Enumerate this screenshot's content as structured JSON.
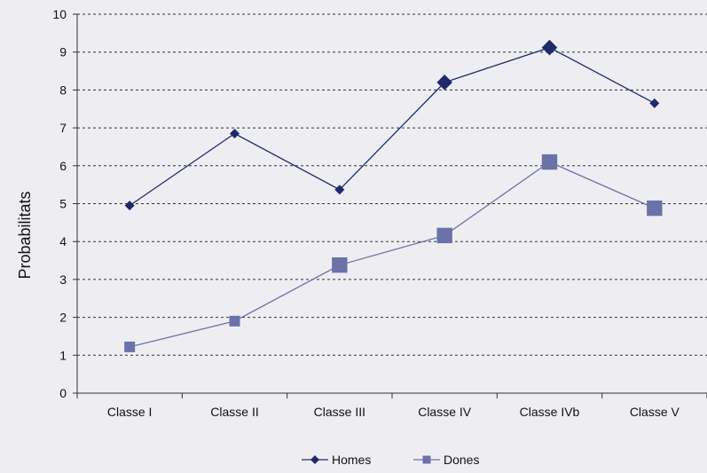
{
  "chart_data": {
    "type": "line",
    "title": "",
    "xlabel": "",
    "ylabel": "Probabilitats",
    "ylim": [
      0,
      10
    ],
    "yticks": [
      0,
      1,
      2,
      3,
      4,
      5,
      6,
      7,
      8,
      9,
      10
    ],
    "categories": [
      "Classe I",
      "Classe II",
      "Classe III",
      "Classe IV",
      "Classe IVb",
      "Classe V"
    ],
    "grid": "horizontal-dotted",
    "legend_position": "bottom",
    "series": [
      {
        "name": "Homes",
        "marker": "diamond",
        "color": "#1f2a6e",
        "values": [
          4.95,
          6.85,
          5.37,
          8.2,
          9.12,
          7.65
        ],
        "marker_scale": [
          1,
          1,
          1,
          1.6,
          1.6,
          1
        ]
      },
      {
        "name": "Dones",
        "marker": "square",
        "color": "#6b72a8",
        "values": [
          1.22,
          1.9,
          3.38,
          4.16,
          6.1,
          4.88
        ],
        "marker_scale": [
          1,
          1,
          1.45,
          1.45,
          1.45,
          1.45
        ]
      }
    ]
  }
}
